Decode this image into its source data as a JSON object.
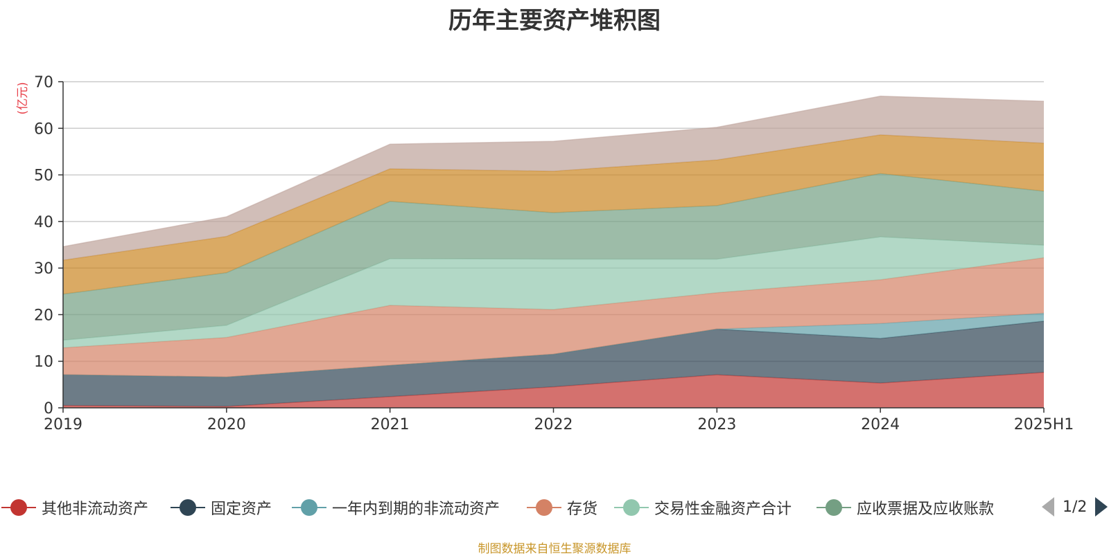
{
  "chart_data": {
    "type": "area",
    "stacked": true,
    "title": "历年主要资产堆积图",
    "ylabel": "(亿元)",
    "xlabel": "",
    "ylim": [
      0,
      70
    ],
    "yticks": [
      0,
      10,
      20,
      30,
      40,
      50,
      60,
      70
    ],
    "grid": true,
    "legend_position": "bottom",
    "categories": [
      "2019",
      "2020",
      "2021",
      "2022",
      "2023",
      "2024",
      "2025H1"
    ],
    "series": [
      {
        "name": "其他非流动资产",
        "color": "#c23531",
        "values": [
          0.5,
          0.3,
          2.4,
          4.5,
          7.1,
          5.3,
          7.6
        ]
      },
      {
        "name": "固定资产",
        "color": "#2f4554",
        "values": [
          6.6,
          6.3,
          6.7,
          7.0,
          9.8,
          9.6,
          11.0
        ]
      },
      {
        "name": "一年内到期的非流动资产",
        "color": "#61a0a8",
        "values": [
          0,
          0,
          0,
          0,
          0,
          3.2,
          1.7
        ]
      },
      {
        "name": "存货",
        "color": "#d48265",
        "values": [
          5.8,
          8.5,
          12.9,
          9.6,
          7.8,
          9.4,
          11.9
        ]
      },
      {
        "name": "交易性金融资产合计",
        "color": "#91c7ae",
        "values": [
          1.6,
          2.6,
          10.0,
          10.8,
          7.2,
          9.2,
          2.7
        ]
      },
      {
        "name": "应收票据及应收账款",
        "color": "#749f83",
        "values": [
          9.9,
          11.3,
          12.3,
          10.0,
          11.5,
          13.6,
          11.6
        ]
      },
      {
        "name": "",
        "color": "#ca8622",
        "values": [
          7.3,
          7.8,
          7.0,
          8.9,
          9.8,
          8.3,
          10.3
        ]
      },
      {
        "name": "",
        "color": "#bda29a",
        "values": [
          2.9,
          4.2,
          5.3,
          6.4,
          7.0,
          8.3,
          9.0
        ]
      }
    ]
  },
  "legend": {
    "page": "1/2"
  },
  "source": "制图数据来自恒生聚源数据库"
}
